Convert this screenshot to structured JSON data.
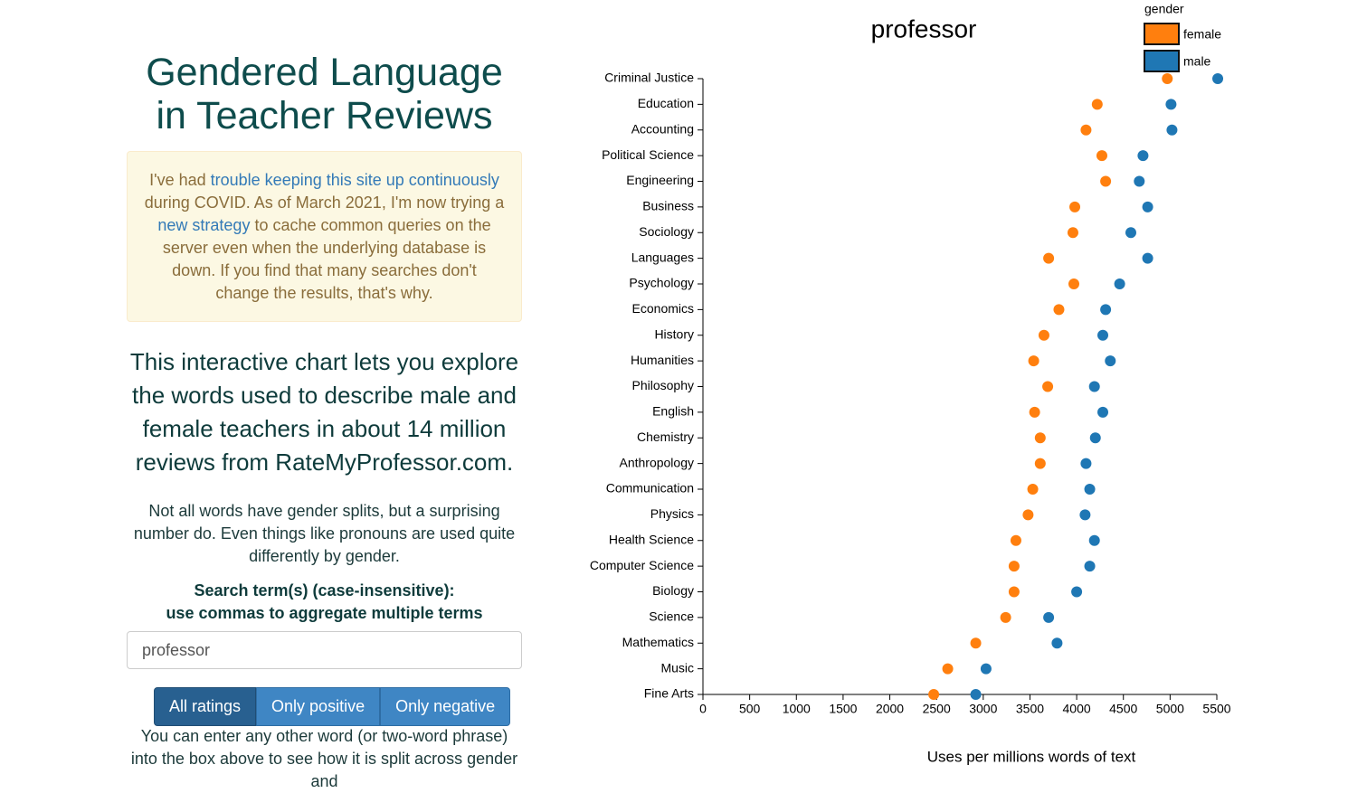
{
  "header": {
    "title_line1": "Gendered Language",
    "title_line2": "in Teacher Reviews"
  },
  "notice": {
    "text1": "I've had ",
    "link1": "trouble keeping this site up continuously",
    "text2": " during COVID. As of March 2021, I'm now trying a ",
    "link2": "new strategy",
    "text3": " to cache common queries on the server even when the underlying database is down. If you find that many searches don't change the results, that's why."
  },
  "intro": "This interactive chart lets you explore the words used to describe male and female teachers in about 14 million reviews from RateMyProfessor.com.",
  "note": "Not all words have gender splits, but a surprising number do. Even things like pronouns are used quite differently by gender.",
  "search": {
    "label_line1": "Search term(s) (case-insensitive):",
    "label_line2": "use commas to aggregate multiple terms",
    "value": "professor"
  },
  "buttons": [
    "All ratings",
    "Only positive",
    "Only negative"
  ],
  "more": "You can enter any other word (or two-word phrase) into the box above to see how it is split across gender and",
  "chart_data": {
    "type": "dot",
    "title": "professor",
    "legend_title": "gender",
    "x_label": "Uses per millions words of text",
    "categories": [
      "Criminal Justice",
      "Education",
      "Accounting",
      "Political Science",
      "Engineering",
      "Business",
      "Sociology",
      "Languages",
      "Psychology",
      "Economics",
      "History",
      "Humanities",
      "Philosophy",
      "English",
      "Chemistry",
      "Anthropology",
      "Communication",
      "Physics",
      "Health Science",
      "Computer Science",
      "Biology",
      "Science",
      "Mathematics",
      "Music",
      "Fine Arts"
    ],
    "series": [
      {
        "name": "female",
        "color": "#ff7f0e",
        "values": [
          4970,
          4220,
          4100,
          4270,
          4310,
          3980,
          3960,
          3700,
          3970,
          3810,
          3650,
          3540,
          3690,
          3550,
          3610,
          3610,
          3530,
          3480,
          3350,
          3330,
          3330,
          3240,
          2920,
          2620,
          2470
        ]
      },
      {
        "name": "male",
        "color": "#1f77b4",
        "values": [
          5510,
          5010,
          5020,
          4710,
          4670,
          4760,
          4580,
          4760,
          4460,
          4310,
          4280,
          4360,
          4190,
          4280,
          4200,
          4100,
          4140,
          4090,
          4190,
          4140,
          4000,
          3700,
          3790,
          3030,
          2920
        ]
      }
    ],
    "xlim": [
      0,
      5500
    ],
    "xticks": [
      0,
      500,
      1000,
      1500,
      2000,
      2500,
      3000,
      3500,
      4000,
      4500,
      5000,
      5500
    ]
  }
}
